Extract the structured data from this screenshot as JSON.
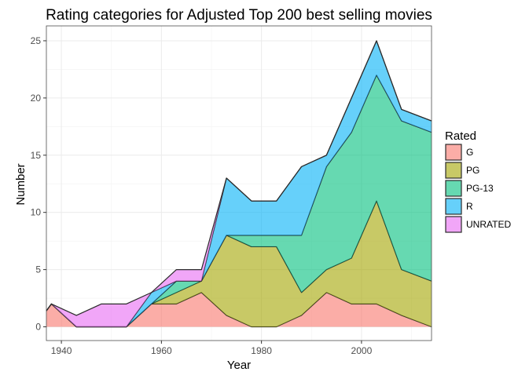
{
  "chart_data": {
    "type": "area",
    "stacked": true,
    "title": "Rating categories for Adjusted Top 200 best selling movies",
    "xlabel": "Year",
    "ylabel": "Number",
    "xlim": [
      1937,
      2014
    ],
    "ylim": [
      -1.2,
      26.3
    ],
    "x_ticks": [
      1940,
      1960,
      1980,
      2000
    ],
    "y_ticks": [
      0,
      5,
      10,
      15,
      20,
      25
    ],
    "grid": true,
    "legend": {
      "title": "Rated",
      "placement": "right"
    },
    "x": [
      1937,
      1938,
      1943,
      1948,
      1953,
      1958,
      1963,
      1968,
      1973,
      1978,
      1983,
      1988,
      1993,
      1998,
      2003,
      2008,
      2014
    ],
    "series": [
      {
        "name": "G",
        "color": "#F8766D",
        "values": [
          1.4,
          2,
          0,
          0,
          0,
          2,
          2,
          3,
          1,
          0,
          0,
          1,
          3,
          2,
          2,
          1,
          0
        ]
      },
      {
        "name": "PG",
        "color": "#A3A500",
        "values": [
          0,
          0,
          0,
          0,
          0,
          0,
          1,
          1,
          7,
          7,
          7,
          2,
          2,
          4,
          9,
          4,
          4
        ]
      },
      {
        "name": "PG-13",
        "color": "#00BF7D",
        "values": [
          0,
          0,
          0,
          0,
          0,
          0,
          1,
          0,
          0,
          1,
          1,
          5,
          9,
          11,
          11,
          13,
          13
        ]
      },
      {
        "name": "R",
        "color": "#00B0F6",
        "values": [
          0,
          0,
          0,
          0,
          0,
          1,
          0,
          0,
          5,
          3,
          3,
          6,
          1,
          3,
          3,
          1,
          1
        ]
      },
      {
        "name": "UNRATED",
        "color": "#E76BF3",
        "values": [
          0,
          0,
          1,
          2,
          2,
          0,
          1,
          1,
          0,
          0,
          0,
          0,
          0,
          0,
          0,
          0,
          0
        ]
      }
    ]
  }
}
